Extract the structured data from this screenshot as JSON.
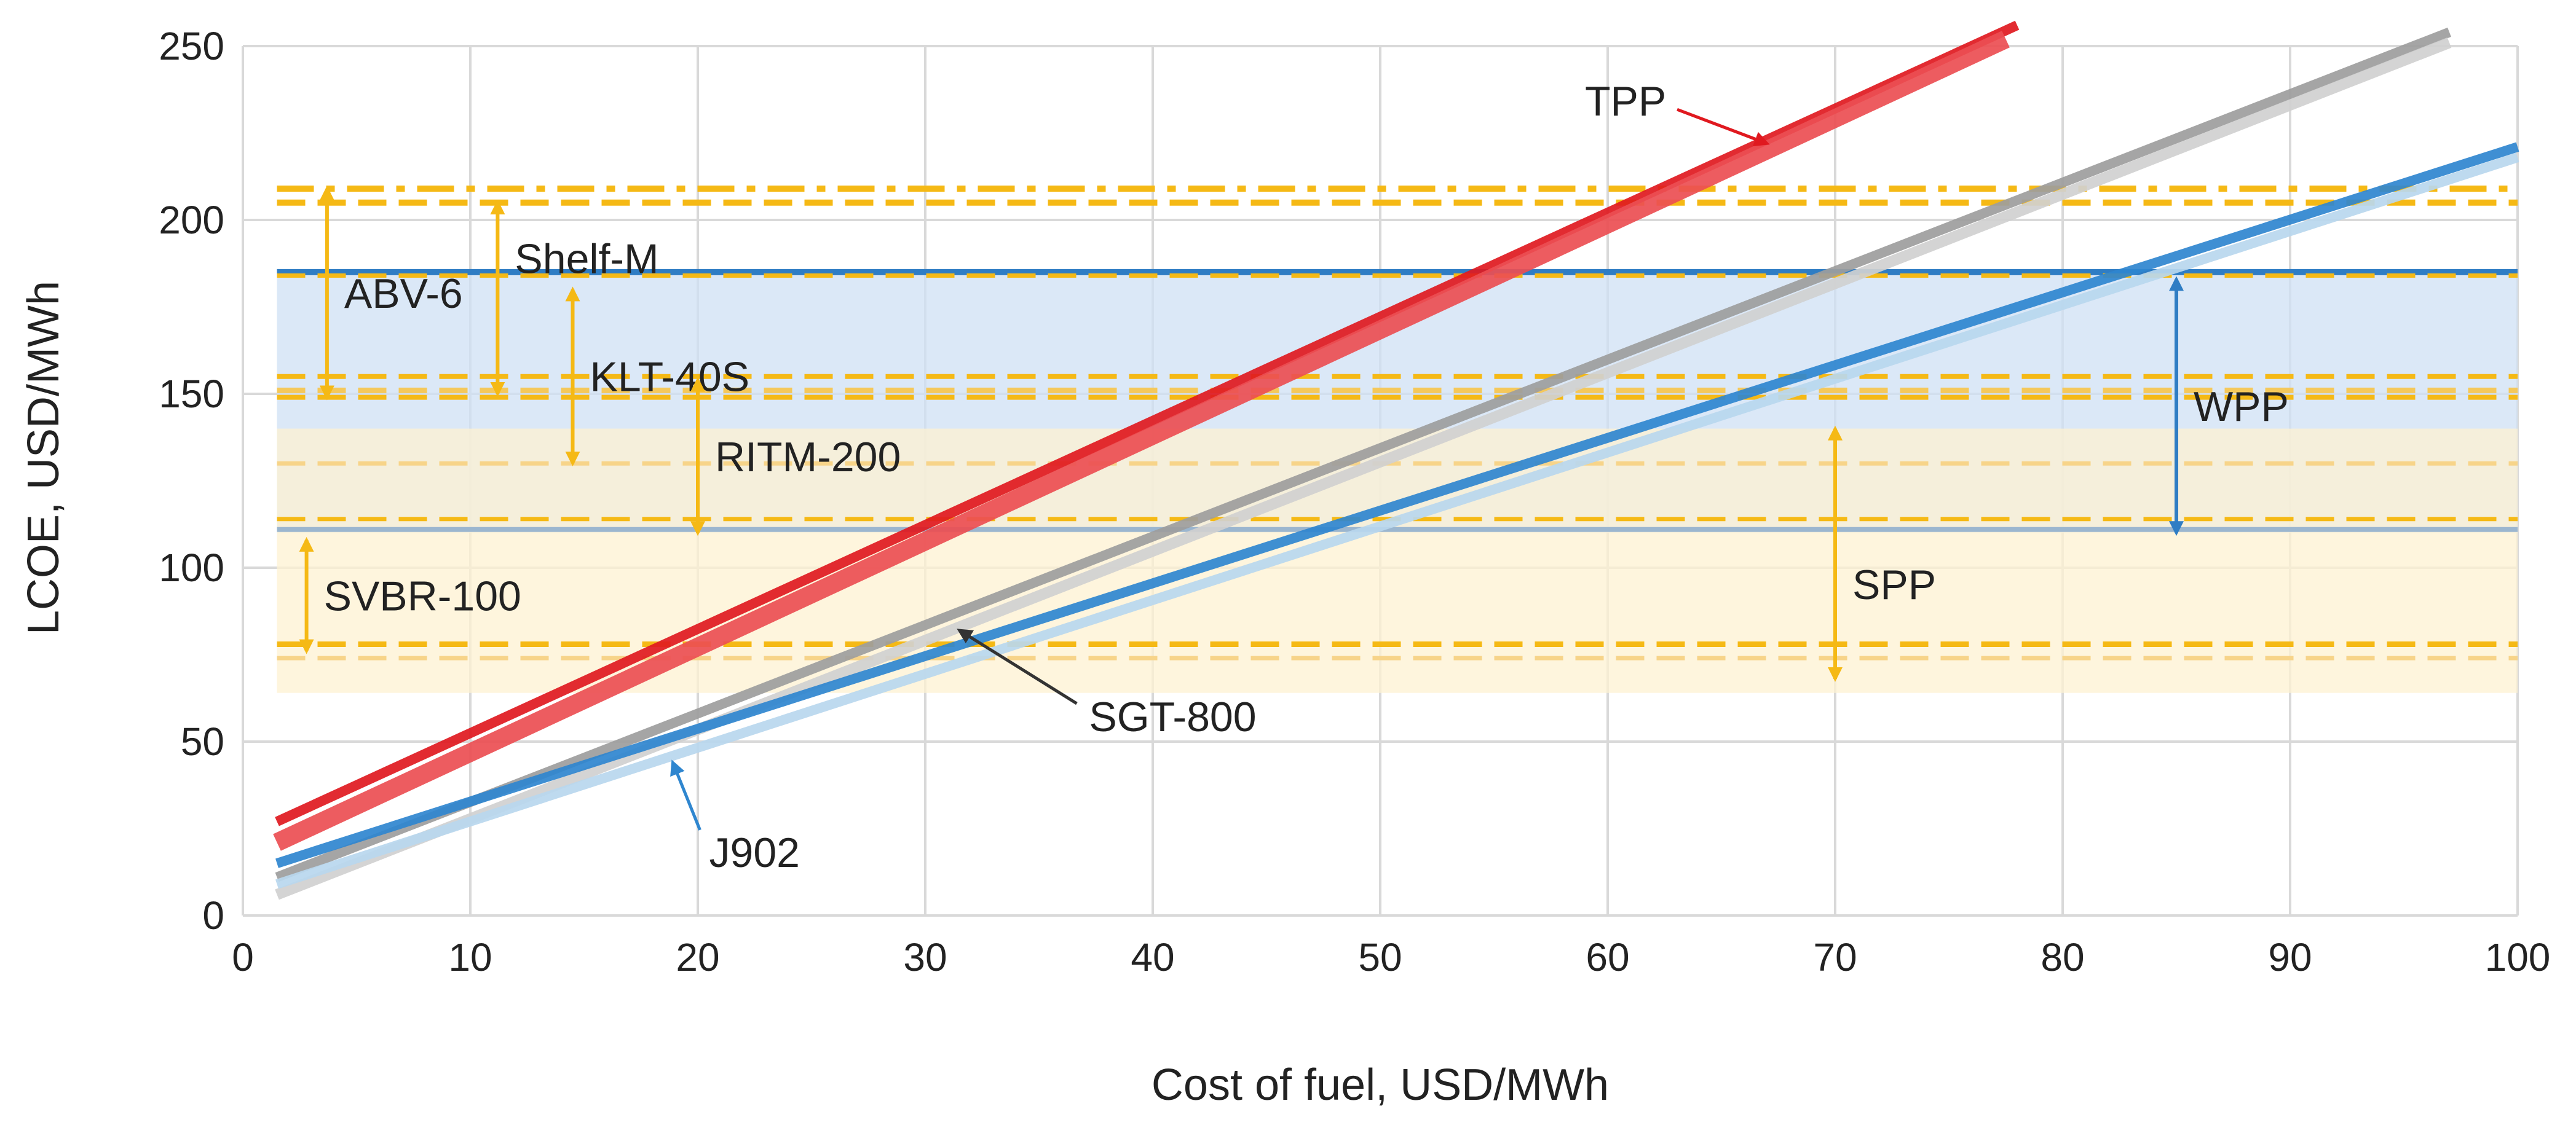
{
  "chart_data": {
    "type": "line",
    "title": "",
    "xlabel": "Cost of fuel, USD/MWh",
    "ylabel": "LCOE, USD/MWh",
    "xlim": [
      0,
      100
    ],
    "ylim": [
      0,
      250
    ],
    "xticks": [
      0,
      10,
      20,
      30,
      40,
      50,
      60,
      70,
      80,
      90,
      100
    ],
    "yticks": [
      0,
      50,
      100,
      150,
      200,
      250
    ],
    "grid": true,
    "colors": {
      "tpp": "#e0191f",
      "gray": "#9d9d9d",
      "blue": "#2f86cf",
      "wpp_band": "#cfe0f4",
      "spp_band": "#fdf2d2",
      "nuclear": "#f5b915",
      "grid": "#d9d9d9"
    },
    "series": [
      {
        "name": "TPP",
        "label": "TPP",
        "color": "#e0191f",
        "x": [
          1.5,
          78
        ],
        "y": [
          27,
          256
        ],
        "width": 16
      },
      {
        "name": "TPP (lower)",
        "color": "#ec4e52",
        "x": [
          1.5,
          77.5
        ],
        "y": [
          21,
          252
        ],
        "width": 30
      },
      {
        "name": "SGT-800",
        "label": "SGT-800",
        "color": "#9d9d9d",
        "x": [
          1.5,
          97
        ],
        "y": [
          11,
          254
        ],
        "width": 16
      },
      {
        "name": "SGT-800 (lower)",
        "color": "#d0d0d0",
        "x": [
          1.5,
          97
        ],
        "y": [
          6,
          251
        ],
        "width": 18
      },
      {
        "name": "J902",
        "label": "J902",
        "color": "#2f86cf",
        "x": [
          1.5,
          100
        ],
        "y": [
          15,
          221
        ],
        "width": 16
      },
      {
        "name": "J902 (lower)",
        "color": "#b9d7ee",
        "x": [
          1.5,
          100
        ],
        "y": [
          9,
          218
        ],
        "width": 16
      }
    ],
    "bands": [
      {
        "name": "WPP",
        "from": 110,
        "to": 185,
        "color": "#cfe0f4"
      },
      {
        "name": "SPP",
        "from": 64,
        "to": 140,
        "color": "#fdf2d2"
      }
    ],
    "reference_lines": [
      {
        "y": 185,
        "color": "#2f7dc4",
        "style": "solid",
        "width": 10
      },
      {
        "y": 111,
        "color": "#9bb6cf",
        "style": "solid",
        "width": 8
      },
      {
        "y": 209,
        "color": "#f5b915",
        "style": "dashdot",
        "width": 10
      },
      {
        "y": 205,
        "color": "#f5b915",
        "style": "dash",
        "width": 10
      },
      {
        "y": 184,
        "color": "#f5b915",
        "style": "dash",
        "width": 7
      },
      {
        "y": 155,
        "color": "#f5b915",
        "style": "dash",
        "width": 8
      },
      {
        "y": 151,
        "color": "#f5c85a",
        "style": "dash",
        "width": 9
      },
      {
        "y": 149,
        "color": "#f5b915",
        "style": "dash",
        "width": 8
      },
      {
        "y": 130,
        "color": "#f7d489",
        "style": "dash",
        "width": 7
      },
      {
        "y": 114,
        "color": "#f5b915",
        "style": "dash",
        "width": 7
      },
      {
        "y": 78,
        "color": "#f5b915",
        "style": "dash",
        "width": 9
      },
      {
        "y": 74,
        "color": "#f7d489",
        "style": "dash",
        "width": 7
      }
    ],
    "range_annotations": [
      {
        "label": "ABV-6",
        "x": 3.7,
        "from": 209,
        "to": 149,
        "color": "#f5b915",
        "label_side": "right"
      },
      {
        "label": "Shelf-M",
        "x": 11.2,
        "from": 205,
        "to": 150,
        "color": "#f5b915",
        "label_side": "right-top"
      },
      {
        "label": "KLT-40S",
        "x": 14.5,
        "from": 180,
        "to": 130,
        "color": "#f5b915",
        "label_side": "right"
      },
      {
        "label": "RITM-200",
        "x": 20,
        "from": 154,
        "to": 110,
        "color": "#f5b915",
        "label_side": "right"
      },
      {
        "label": "SVBR-100",
        "x": 2.8,
        "from": 108,
        "to": 76,
        "color": "#f5b915",
        "label_side": "right"
      },
      {
        "label": "SPP",
        "x": 70,
        "from": 140,
        "to": 68,
        "color": "#f5b915",
        "label_side": "right"
      },
      {
        "label": "WPP",
        "x": 85,
        "from": 183,
        "to": 110,
        "color": "#2f7dc4",
        "label_side": "right"
      }
    ],
    "pointers": [
      {
        "label": "TPP",
        "text_x": 59,
        "text_y": 230,
        "tip_x": 67,
        "tip_y": 222,
        "color": "#e0191f"
      },
      {
        "label": "SGT-800",
        "text_x": 37.2,
        "text_y": 53,
        "tip_x": 31.5,
        "tip_y": 82,
        "color": "#333333"
      },
      {
        "label": "J902",
        "text_x": 20.5,
        "text_y": 14,
        "tip_x": 18.9,
        "tip_y": 44,
        "color": "#2f86cf"
      }
    ]
  }
}
